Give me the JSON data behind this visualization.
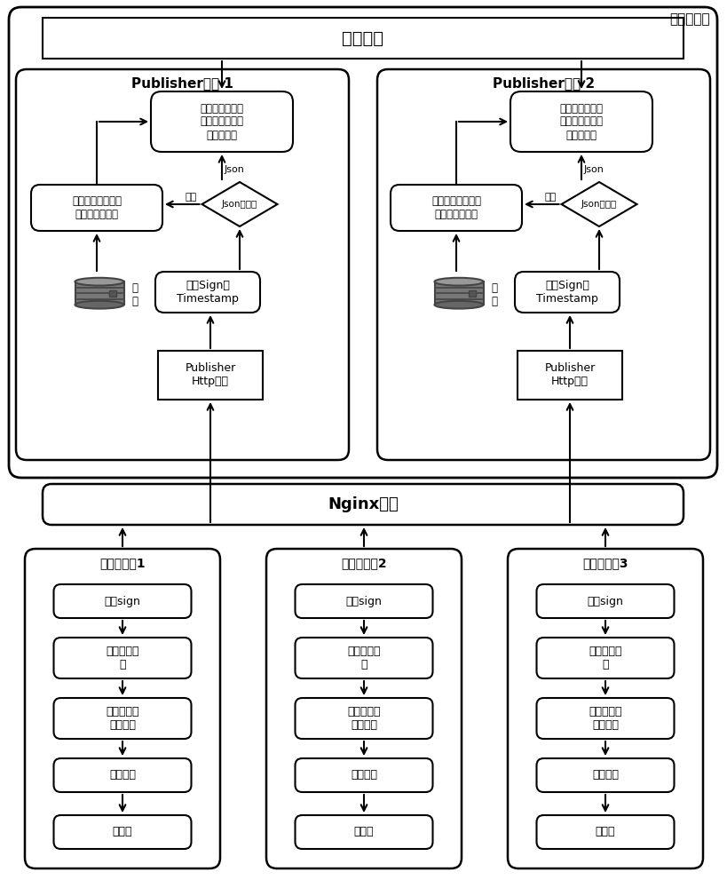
{
  "bg_color": "#ffffff",
  "title_label": "中台服务器",
  "msg_queue_label": "消息队列",
  "nginx_label": "Nginx分流",
  "pub1_title": "Publisher实例 1",
  "pub2_title": "Publisher实例 2",
  "pub1_route_label": "根据业务类型将\n消息体放入各自\n的消息队列",
  "pub2_route_label": "根据业务类型将\n消息体放入各自\n的消息队列",
  "pub1_save_label": "保存文件到指定目\n录，包装消息体",
  "pub2_save_label": "保存文件到指定目\n录，包装消息体",
  "pub1_verify_label": "验证Sign和\nTimestamp",
  "pub2_verify_label": "验证Sign和\nTimestamp",
  "pub1_http_label": "Publisher\nHttp接口",
  "pub2_http_label": "Publisher\nHttp接口",
  "diamond_label": "Json或文件",
  "json_label": "Json",
  "file_label": "文件",
  "disk_label": "磁\n盘",
  "ds_titles": [
    "数据来源端1",
    "数据来源端2",
    "数据来源端3"
  ],
  "ds_step1": "生成sign",
  "ds_step2": "加入业务类\n型",
  "ds_step3": "序列化并压\n缩成文件",
  "ds_step4": "数据采集",
  "ds_step5": "数据源"
}
